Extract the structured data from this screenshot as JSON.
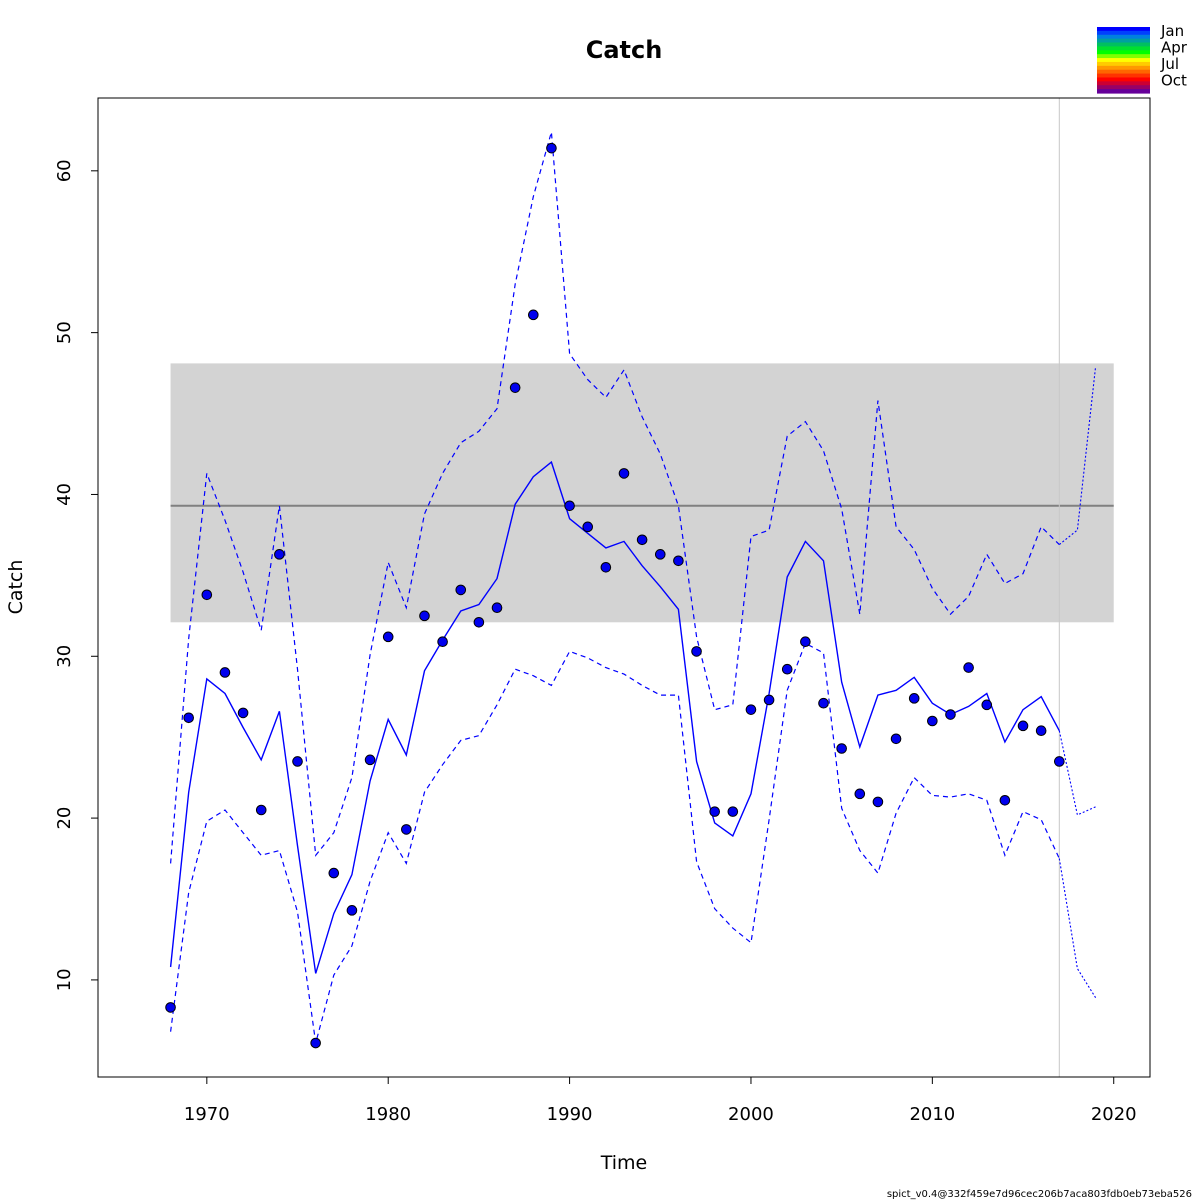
{
  "chart_data": {
    "type": "line",
    "title": "Catch",
    "xlabel": "Time",
    "ylabel": "Catch",
    "xlim": [
      1964,
      2022
    ],
    "ylim": [
      4.0,
      64.5
    ],
    "xticks": [
      1970,
      1980,
      1990,
      2000,
      2010,
      2020
    ],
    "yticks": [
      10,
      20,
      30,
      40,
      50,
      60
    ],
    "footer": "spict_v0.4@332f459e7d96cec206b7aca803fdb0eb73eba526",
    "colors": {
      "series": "#0000ff",
      "points_fill": "#0000ee",
      "band": "#d3d3d3",
      "msy_line": "#808080",
      "vline": "#c8c8c8"
    },
    "msy_band": {
      "lower": 32.1,
      "upper": 48.1,
      "x_range": [
        1968,
        2020
      ]
    },
    "msy_line": 39.3,
    "vertical_line_x": 2017,
    "observed": {
      "x": [
        1968,
        1969,
        1970,
        1971,
        1972,
        1973,
        1974,
        1975,
        1976,
        1977,
        1978,
        1979,
        1980,
        1981,
        1982,
        1983,
        1984,
        1985,
        1986,
        1987,
        1988,
        1989,
        1990,
        1991,
        1992,
        1993,
        1994,
        1995,
        1996,
        1997,
        1998,
        1999,
        2000,
        2001,
        2002,
        2003,
        2004,
        2005,
        2006,
        2007,
        2008,
        2009,
        2010,
        2011,
        2012,
        2013,
        2014,
        2015,
        2016,
        2017
      ],
      "y": [
        8.3,
        26.2,
        33.8,
        29.0,
        26.5,
        20.5,
        36.3,
        23.5,
        6.1,
        16.6,
        14.3,
        23.6,
        31.2,
        19.3,
        32.5,
        30.9,
        34.1,
        32.1,
        33.0,
        46.6,
        51.1,
        61.4,
        39.3,
        38.0,
        35.5,
        41.3,
        37.2,
        36.3,
        35.9,
        30.3,
        20.4,
        20.4,
        26.7,
        27.3,
        29.2,
        30.9,
        27.1,
        24.3,
        21.5,
        21.0,
        24.9,
        27.4,
        26.0,
        26.4,
        29.3,
        27.0,
        21.1,
        25.7,
        25.4,
        23.5
      ]
    },
    "estimate": {
      "x": [
        1968,
        1969,
        1970,
        1971,
        1972,
        1973,
        1974,
        1975,
        1976,
        1977,
        1978,
        1979,
        1980,
        1981,
        1982,
        1983,
        1984,
        1985,
        1986,
        1987,
        1988,
        1989,
        1990,
        1991,
        1992,
        1993,
        1994,
        1995,
        1996,
        1997,
        1998,
        1999,
        2000,
        2001,
        2002,
        2003,
        2004,
        2005,
        2006,
        2007,
        2008,
        2009,
        2010,
        2011,
        2012,
        2013,
        2014,
        2015,
        2016,
        2017
      ],
      "y": [
        10.8,
        21.6,
        28.6,
        27.7,
        25.6,
        23.6,
        26.6,
        18.3,
        10.4,
        14.1,
        16.5,
        22.3,
        26.1,
        23.9,
        29.1,
        31.0,
        32.8,
        33.2,
        34.8,
        39.4,
        41.1,
        42.0,
        38.5,
        37.6,
        36.7,
        37.1,
        35.6,
        34.3,
        32.9,
        23.5,
        19.7,
        18.9,
        21.5,
        27.7,
        34.9,
        37.1,
        35.9,
        28.4,
        24.4,
        27.6,
        27.9,
        28.7,
        27.1,
        26.4,
        26.9,
        27.7,
        24.7,
        26.7,
        27.5,
        25.4
      ]
    },
    "upper_ci": {
      "x": [
        1968,
        1969,
        1970,
        1971,
        1972,
        1973,
        1974,
        1975,
        1976,
        1977,
        1978,
        1979,
        1980,
        1981,
        1982,
        1983,
        1984,
        1985,
        1986,
        1987,
        1988,
        1989,
        1990,
        1991,
        1992,
        1993,
        1994,
        1995,
        1996,
        1997,
        1998,
        1999,
        2000,
        2001,
        2002,
        2003,
        2004,
        2005,
        2006,
        2007,
        2008,
        2009,
        2010,
        2011,
        2012,
        2013,
        2014,
        2015,
        2016,
        2017
      ],
      "y": [
        17.2,
        31.1,
        41.3,
        38.4,
        35.2,
        31.6,
        39.3,
        29.2,
        17.7,
        19.1,
        22.5,
        30.1,
        35.8,
        33.0,
        38.8,
        41.3,
        43.2,
        43.9,
        45.3,
        53.0,
        58.4,
        62.4,
        48.7,
        47.1,
        46.0,
        47.7,
        44.8,
        42.5,
        39.3,
        31.2,
        26.7,
        27.0,
        37.4,
        37.8,
        43.6,
        44.5,
        42.7,
        39.1,
        32.6,
        45.8,
        38.0,
        36.6,
        34.2,
        32.6,
        33.7,
        36.3,
        34.5,
        35.1,
        38.0,
        36.9
      ]
    },
    "lower_ci": {
      "x": [
        1968,
        1969,
        1970,
        1971,
        1972,
        1973,
        1974,
        1975,
        1976,
        1977,
        1978,
        1979,
        1980,
        1981,
        1982,
        1983,
        1984,
        1985,
        1986,
        1987,
        1988,
        1989,
        1990,
        1991,
        1992,
        1993,
        1994,
        1995,
        1996,
        1997,
        1998,
        1999,
        2000,
        2001,
        2002,
        2003,
        2004,
        2005,
        2006,
        2007,
        2008,
        2009,
        2010,
        2011,
        2012,
        2013,
        2014,
        2015,
        2016,
        2017
      ],
      "y": [
        6.8,
        15.4,
        19.8,
        20.5,
        19.1,
        17.7,
        18.0,
        14.2,
        6.1,
        10.3,
        12.1,
        16.1,
        19.1,
        17.2,
        21.6,
        23.3,
        24.8,
        25.1,
        27.0,
        29.2,
        28.8,
        28.2,
        30.3,
        29.9,
        29.3,
        28.9,
        28.2,
        27.6,
        27.6,
        17.3,
        14.4,
        13.2,
        12.3,
        19.9,
        27.9,
        30.8,
        30.2,
        20.6,
        18.0,
        16.6,
        20.3,
        22.5,
        21.4,
        21.3,
        21.5,
        21.1,
        17.7,
        20.4,
        19.9,
        17.5
      ]
    },
    "forecast_estimate": {
      "x": [
        2017,
        2018,
        2019
      ],
      "y": [
        25.4,
        20.2,
        20.7
      ]
    },
    "forecast_upper": {
      "x": [
        2017,
        2018,
        2019
      ],
      "y": [
        36.9,
        37.8,
        47.9
      ]
    },
    "forecast_lower": {
      "x": [
        2017,
        2018,
        2019
      ],
      "y": [
        17.5,
        10.7,
        8.9
      ]
    },
    "legend": {
      "placement": "top-right",
      "labels": [
        "Jan",
        "Apr",
        "Jul",
        "Oct"
      ],
      "colors": [
        "#0000ff",
        "#0040ff",
        "#0080e0",
        "#00a0a0",
        "#00c060",
        "#00e030",
        "#00ff00",
        "#80ff00",
        "#ffff00",
        "#ffcc00",
        "#ff9900",
        "#ff6600",
        "#ff3300",
        "#ff0000",
        "#cc0033",
        "#990066",
        "#660099"
      ]
    },
    "grid": false
  }
}
